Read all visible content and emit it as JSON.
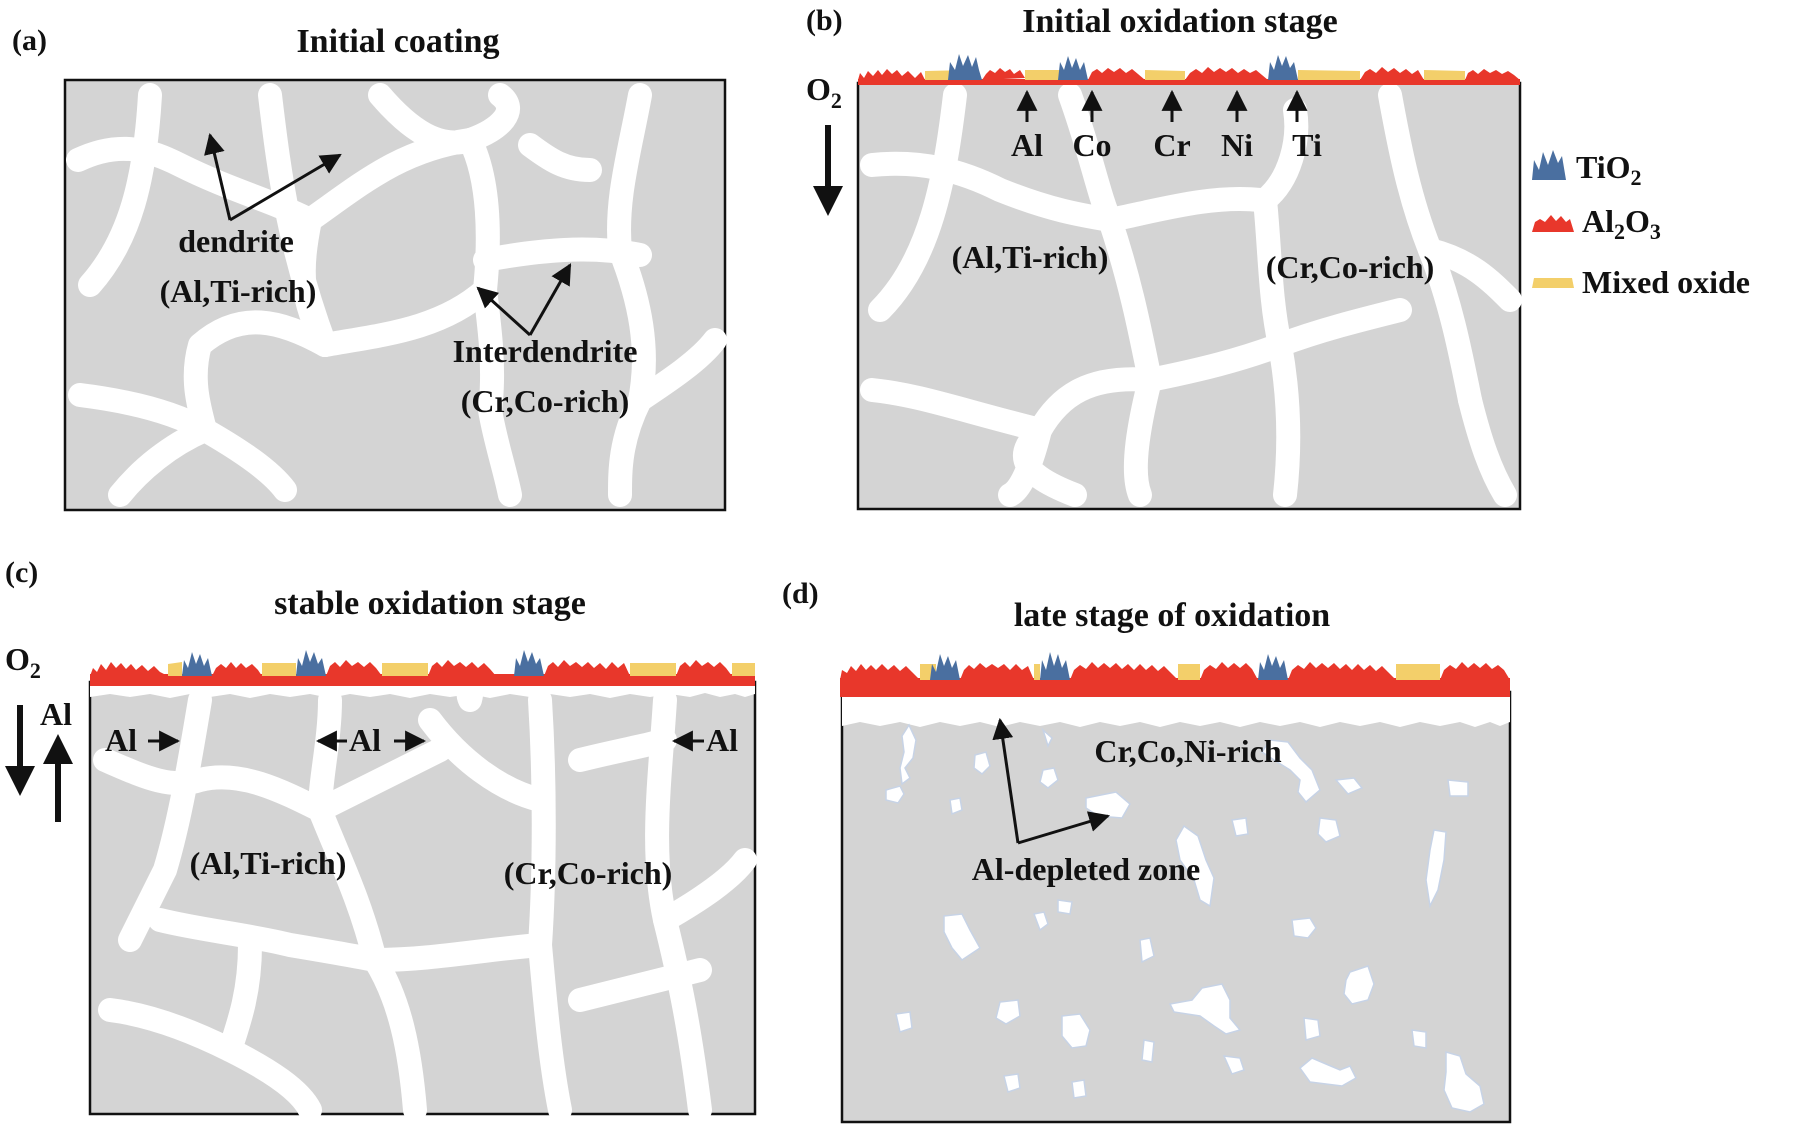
{
  "panels": {
    "a": {
      "letter": "(a)",
      "title": "Initial coating",
      "dendrite_label": "dendrite",
      "dendrite_comp": "(Al,Ti-rich)",
      "interdendrite_label": "Interdendrite",
      "interdendrite_comp": "(Cr,Co-rich)"
    },
    "b": {
      "letter": "(b)",
      "title": "Initial oxidation stage",
      "o2_label": "O",
      "o2_sub": "2",
      "elements": [
        "Al",
        "Co",
        "Cr",
        "Ni",
        "Ti"
      ],
      "dendrite_comp": "(Al,Ti-rich)",
      "interdendrite_comp": "(Cr,Co-rich)"
    },
    "c": {
      "letter": "(c)",
      "title": "stable oxidation stage",
      "o2_label": "O",
      "o2_sub": "2",
      "al_label": "Al",
      "al_arrows": [
        "Al",
        "Al",
        "Al"
      ],
      "dendrite_comp": "(Al,Ti-rich)",
      "interdendrite_comp": "(Cr,Co-rich)"
    },
    "d": {
      "letter": "(d)",
      "title": "late stage of oxidation",
      "rich_label": "Cr,Co,Ni-rich",
      "depleted_label": "Al-depleted zone"
    }
  },
  "legend": {
    "items": [
      {
        "label": "TiO",
        "sub": "2",
        "sub2": "",
        "color": "#4a6fa0"
      },
      {
        "label": "Al",
        "sub": "2",
        "mid": "O",
        "sub2": "3",
        "color": "#e8372b"
      },
      {
        "label": "Mixed oxide",
        "sub": "",
        "sub2": "",
        "color": "#f3cf6a"
      }
    ]
  },
  "colors": {
    "matrix": "#d4d4d4",
    "al2o3": "#e8372b",
    "tio2": "#4a6fa0",
    "mixed": "#f3cf6a"
  }
}
